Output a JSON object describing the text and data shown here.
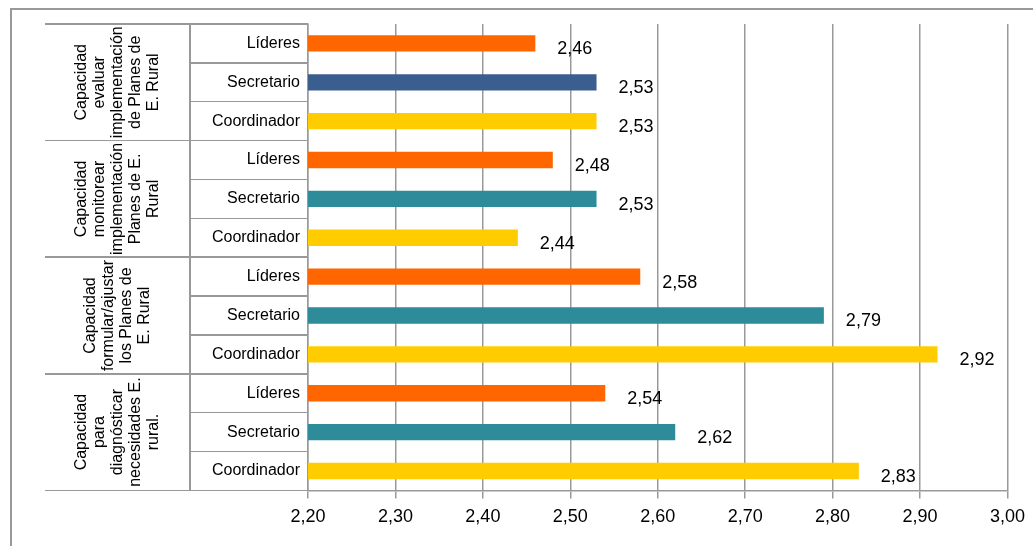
{
  "chart_data": {
    "type": "bar",
    "orientation": "horizontal",
    "categories": [
      "Líderes",
      "Secretario",
      "Coordinador",
      "Líderes",
      "Secretario",
      "Coordinador",
      "Líderes",
      "Secretario",
      "Coordinador",
      "Líderes",
      "Secretario",
      "Coordinador"
    ],
    "values": [
      2.46,
      2.53,
      2.53,
      2.48,
      2.53,
      2.44,
      2.58,
      2.79,
      2.92,
      2.54,
      2.62,
      2.83
    ],
    "value_labels": [
      "2,46",
      "2,53",
      "2,53",
      "2,48",
      "2,53",
      "2,44",
      "2,58",
      "2,79",
      "2,92",
      "2,54",
      "2,62",
      "2,83"
    ],
    "colors": [
      "#ff6600",
      "#3a5f8f",
      "#ffcc00",
      "#ff6600",
      "#2e8b9a",
      "#ffcc00",
      "#ff6600",
      "#2e8b9a",
      "#ffcc00",
      "#ff6600",
      "#2e8b9a",
      "#ffcc00"
    ],
    "xlim": [
      2.2,
      3.0
    ],
    "xticks": [
      {
        "value": 2.2,
        "label": "2,20"
      },
      {
        "value": 2.3,
        "label": "2,30"
      },
      {
        "value": 2.4,
        "label": "2,40"
      },
      {
        "value": 2.5,
        "label": "2,50"
      },
      {
        "value": 2.6,
        "label": "2,60"
      },
      {
        "value": 2.7,
        "label": "2,70"
      },
      {
        "value": 2.8,
        "label": "2,80"
      },
      {
        "value": 2.9,
        "label": "2,90"
      },
      {
        "value": 3.0,
        "label": "3,00"
      }
    ],
    "annotations": [
      "Capacidad evaluar implementación de Planes de E. Rural",
      "Capacidad monitorear implementación Planes de E. Rural",
      "Capacidad formular/ajustar los Planes de E. Rural",
      "Capacidad para diagnósticar necesidades E. rural."
    ],
    "grid": "x",
    "legend": false
  }
}
